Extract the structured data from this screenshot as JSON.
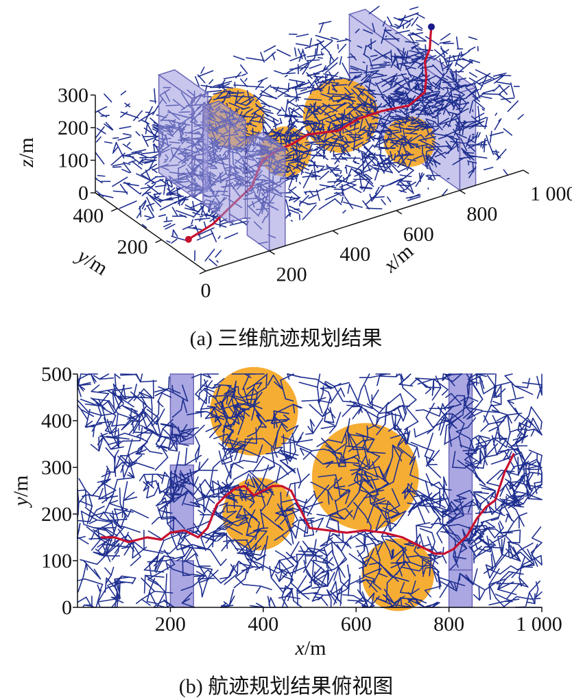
{
  "colors": {
    "tree": "#1f2f8f",
    "path": "#c8102e",
    "sphere": "#f5a623",
    "wall_fill": "#9b98dd",
    "wall_stroke": "#6b67b8",
    "axis": "#111111"
  },
  "chart_data": [
    {
      "type": "scatter",
      "subtype": "3d",
      "caption": "(a) 三维航迹规划结果",
      "xlabel_var": "x",
      "xlabel_unit": "/m",
      "ylabel_var": "y",
      "ylabel_unit": "/m",
      "zlabel_var": "z",
      "zlabel_unit": "/m",
      "xticks": [
        "200",
        "400",
        "600",
        "800",
        "1 000"
      ],
      "xtick_values": [
        200,
        400,
        600,
        800,
        1000
      ],
      "yticks": [
        "0",
        "200",
        "400"
      ],
      "ytick_values": [
        0,
        200,
        400
      ],
      "zticks": [
        "0",
        "100",
        "200",
        "300"
      ],
      "ztick_values": [
        0,
        100,
        200,
        300
      ],
      "xlim": [
        0,
        1000
      ],
      "ylim": [
        0,
        500
      ],
      "zlim": [
        0,
        300
      ],
      "grid": false,
      "series": [
        {
          "kind": "rrt_tree",
          "color": "#1f2f8f"
        },
        {
          "kind": "planned_path",
          "color": "#c8102e",
          "x": [
            50,
            120,
            200,
            260,
            330,
            380,
            420,
            470,
            540,
            600,
            660,
            720,
            780,
            820,
            850,
            890,
            920,
            940
          ],
          "y": [
            150,
            140,
            150,
            165,
            220,
            230,
            210,
            215,
            175,
            170,
            150,
            115,
            130,
            180,
            230,
            265,
            305,
            330
          ],
          "z": [
            10,
            40,
            80,
            100,
            130,
            140,
            160,
            170,
            180,
            200,
            215,
            230,
            245,
            255,
            270,
            280,
            290,
            300
          ]
        },
        {
          "kind": "start_point",
          "x": 50,
          "y": 150,
          "z": 10
        },
        {
          "kind": "goal_point",
          "x": 940,
          "y": 330,
          "z": 300
        }
      ],
      "obstacles": {
        "spheres": [
          {
            "cx": 380,
            "cy": 420,
            "cz": 150,
            "r": 90
          },
          {
            "cx": 620,
            "cy": 280,
            "cz": 150,
            "r": 110
          },
          {
            "cx": 390,
            "cy": 200,
            "cz": 150,
            "r": 75
          },
          {
            "cx": 690,
            "cy": 70,
            "cz": 150,
            "r": 75
          }
        ],
        "walls": [
          {
            "x0": 200,
            "x1": 250,
            "y0": 350,
            "y1": 500,
            "z0": 0,
            "z1": 300
          },
          {
            "x0": 200,
            "x1": 250,
            "y0": 180,
            "y1": 300,
            "z0": 0,
            "z1": 300
          },
          {
            "x0": 200,
            "x1": 250,
            "y0": 0,
            "y1": 100,
            "z0": 0,
            "z1": 300
          },
          {
            "x0": 800,
            "x1": 850,
            "y0": 0,
            "y1": 500,
            "z0": 0,
            "z1": 300
          }
        ]
      }
    },
    {
      "type": "scatter",
      "subtype": "top_view",
      "caption": "(b) 航迹规划结果俯视图",
      "xlabel_var": "x",
      "xlabel_unit": "/m",
      "ylabel_var": "y",
      "ylabel_unit": "/m",
      "xticks": [
        "200",
        "400",
        "600",
        "800",
        "1 000"
      ],
      "xtick_values": [
        200,
        400,
        600,
        800,
        1000
      ],
      "yticks": [
        "0",
        "100",
        "200",
        "300",
        "400",
        "500"
      ],
      "ytick_values": [
        0,
        100,
        200,
        300,
        400,
        500
      ],
      "xlim": [
        0,
        1000
      ],
      "ylim": [
        0,
        500
      ],
      "grid": false,
      "series": [
        {
          "kind": "rrt_tree",
          "color": "#1f2f8f"
        },
        {
          "kind": "planned_path",
          "color": "#c8102e",
          "x": [
            50,
            80,
            110,
            150,
            180,
            200,
            230,
            260,
            280,
            300,
            320,
            340,
            360,
            380,
            400,
            420,
            440,
            460,
            480,
            500,
            540,
            580,
            620,
            660,
            700,
            740,
            770,
            790,
            810,
            840,
            860,
            880,
            900,
            910,
            920,
            930,
            940
          ],
          "y": [
            150,
            150,
            140,
            150,
            145,
            160,
            165,
            150,
            170,
            220,
            240,
            255,
            260,
            240,
            250,
            260,
            260,
            250,
            210,
            170,
            165,
            160,
            165,
            160,
            150,
            130,
            115,
            115,
            125,
            155,
            190,
            215,
            230,
            260,
            290,
            310,
            330
          ]
        },
        {
          "kind": "start_point",
          "x": 50,
          "y": 150
        },
        {
          "kind": "goal_point",
          "x": 940,
          "y": 330
        }
      ],
      "obstacles": {
        "circles": [
          {
            "cx": 380,
            "cy": 420,
            "r": 95
          },
          {
            "cx": 620,
            "cy": 280,
            "r": 115
          },
          {
            "cx": 390,
            "cy": 200,
            "r": 78
          },
          {
            "cx": 690,
            "cy": 70,
            "r": 78
          }
        ],
        "rects": [
          {
            "x0": 200,
            "x1": 250,
            "y0": 350,
            "y1": 500
          },
          {
            "x0": 200,
            "x1": 250,
            "y0": 160,
            "y1": 305
          },
          {
            "x0": 200,
            "x1": 250,
            "y0": 0,
            "y1": 100
          },
          {
            "x0": 800,
            "x1": 850,
            "y0": 200,
            "y1": 500
          },
          {
            "x0": 800,
            "x1": 850,
            "y0": 80,
            "y1": 200
          },
          {
            "x0": 800,
            "x1": 850,
            "y0": 0,
            "y1": 80
          }
        ]
      }
    }
  ]
}
